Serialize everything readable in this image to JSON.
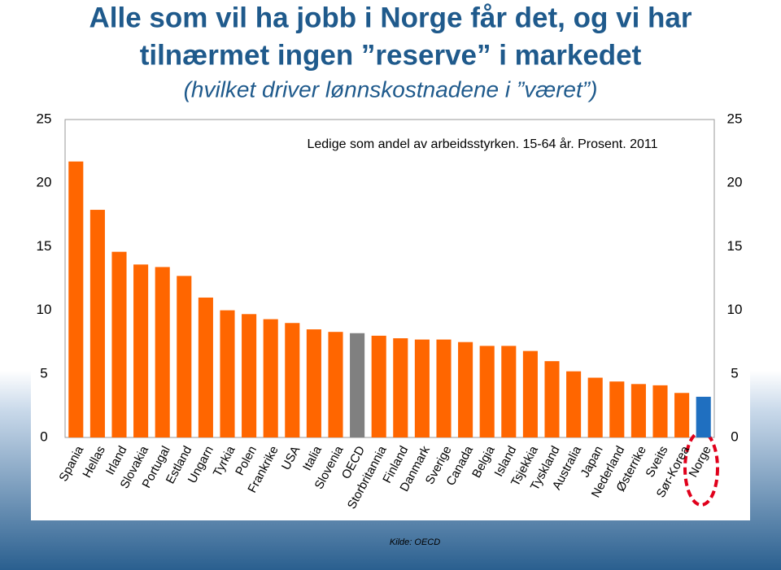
{
  "chart_data": {
    "type": "bar",
    "title": [
      "Alle som vil ha jobb i Norge får det, og vi har",
      "tilnærmet ingen ”reserve” i markedet"
    ],
    "subtitle": "(hvilket driver lønnskostnadene i ”været”)",
    "chart_title": "Ledige som andel av arbeidsstyrken. 15-64 år. Prosent. 2011",
    "source": "Kilde: OECD",
    "categories": [
      "Spania",
      "Hellas",
      "Irland",
      "Slovakia",
      "Portugal",
      "Estland",
      "Ungarn",
      "Tyrkia",
      "Polen",
      "Frankrike",
      "USA",
      "Italia",
      "Slovenia",
      "OECD",
      "Storbritannia",
      "Finland",
      "Danmark",
      "Sverige",
      "Canada",
      "Belgia",
      "Island",
      "Tsjekkia",
      "Tyskland",
      "Australia",
      "Japan",
      "Nederland",
      "Østerrike",
      "Sveits",
      "Sør-Korea",
      "Norge"
    ],
    "values": [
      21.7,
      17.9,
      14.6,
      13.6,
      13.4,
      12.7,
      11.0,
      10.0,
      9.7,
      9.3,
      9.0,
      8.5,
      8.3,
      8.2,
      8.0,
      7.8,
      7.7,
      7.7,
      7.5,
      7.2,
      7.2,
      6.8,
      6.0,
      5.2,
      4.7,
      4.4,
      4.2,
      4.1,
      3.5,
      3.2
    ],
    "colors": [
      "#ff6600",
      "#ff6600",
      "#ff6600",
      "#ff6600",
      "#ff6600",
      "#ff6600",
      "#ff6600",
      "#ff6600",
      "#ff6600",
      "#ff6600",
      "#ff6600",
      "#ff6600",
      "#ff6600",
      "#808080",
      "#ff6600",
      "#ff6600",
      "#ff6600",
      "#ff6600",
      "#ff6600",
      "#ff6600",
      "#ff6600",
      "#ff6600",
      "#ff6600",
      "#ff6600",
      "#ff6600",
      "#ff6600",
      "#ff6600",
      "#ff6600",
      "#ff6600",
      "#1f6fc0"
    ],
    "ylim": [
      0,
      25
    ],
    "yticks": [
      0,
      5,
      10,
      15,
      20,
      25
    ],
    "y2lim": [
      0,
      25
    ],
    "y2ticks": [
      0,
      5,
      10,
      15,
      20,
      25
    ],
    "grid": false
  }
}
